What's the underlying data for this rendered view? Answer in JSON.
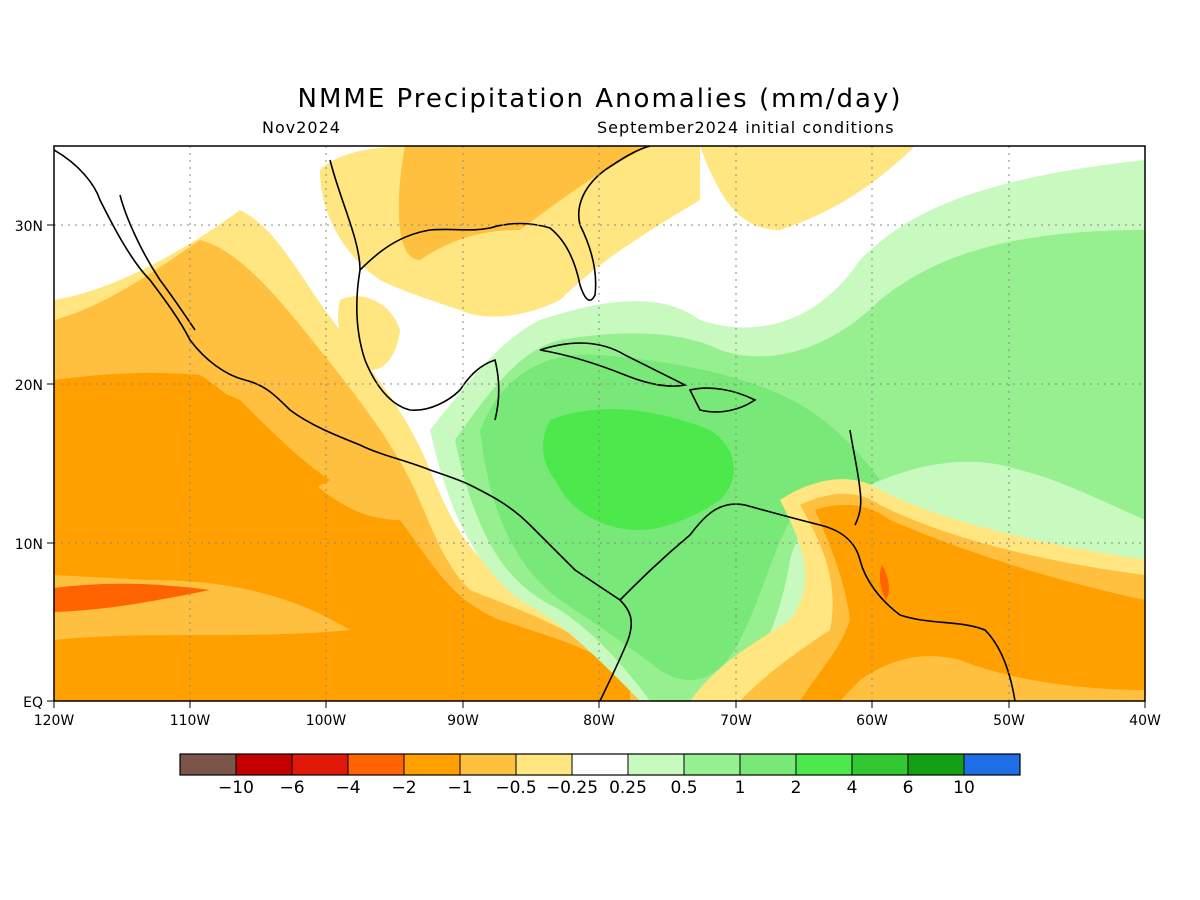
{
  "title": "NMME Precipitation Anomalies (mm/day)",
  "subtitle_left": "Nov2024",
  "subtitle_right": "September2024 initial conditions",
  "map": {
    "lon_range": [
      -120,
      -40
    ],
    "lat_range": [
      0,
      35
    ],
    "x_ticks": [
      "120W",
      "110W",
      "100W",
      "90W",
      "80W",
      "70W",
      "60W",
      "50W",
      "40W"
    ],
    "y_ticks": [
      "EQ",
      "10N",
      "20N",
      "30N"
    ],
    "grid": "dotted"
  },
  "colorbar": {
    "colors": [
      "#7a5548",
      "#c40000",
      "#e0180a",
      "#ff6400",
      "#ffa000",
      "#ffc040",
      "#ffe680",
      "#ffffff",
      "#c8fac0",
      "#96f090",
      "#78e878",
      "#4ce84c",
      "#32c832",
      "#13a013",
      "#1e6ee6"
    ],
    "labels": [
      "−10",
      "−6",
      "−4",
      "−2",
      "−1",
      "−0.5",
      "−0.25",
      "0.25",
      "0.5",
      "1",
      "2",
      "4",
      "6",
      "10"
    ]
  },
  "field_colors": {
    "d10": "#c40000",
    "d4": "#ff6400",
    "d2": "#ffa000",
    "d1": "#ffc040",
    "d05": "#ffe680",
    "w025": "#c8fac0",
    "w05": "#96f090",
    "w1": "#78e878",
    "w2": "#4ce84c",
    "coast": "#000000"
  }
}
